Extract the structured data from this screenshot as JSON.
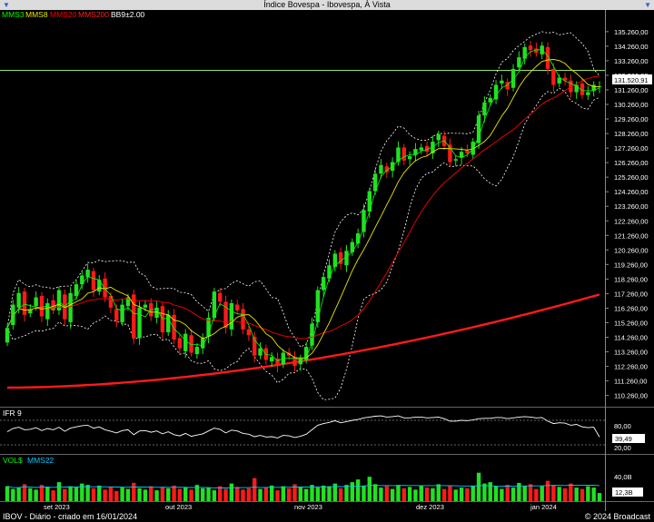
{
  "window": {
    "title": "Índice Bovespa - Ibovespa, À Vista",
    "left_icon": "dropdown-arrow-icon",
    "right_icon": "dropdown-arrow-icon"
  },
  "legend": {
    "mms3": "MMS3",
    "mms8": "MMS8",
    "mms20": "MMS20",
    "mms200": "MMS200",
    "bb": "BB9±2.00",
    "colors": {
      "mms3": "#00ff00",
      "mms8": "#e8e800",
      "mms20": "#ff0000",
      "mms200": "#ff2020",
      "bb": "#ffffff"
    }
  },
  "price_panel": {
    "last_label": "131.520,91",
    "ticks": [
      "135.260,00",
      "134.260,00",
      "133.260,00",
      "132.260,00",
      "131.260,00",
      "130.260,00",
      "129.260,00",
      "128.260,00",
      "127.260,00",
      "126.260,00",
      "125.260,00",
      "124.260,00",
      "123.260,00",
      "122.260,00",
      "121.260,00",
      "120.260,00",
      "119.260,00",
      "118.260,00",
      "117.260,00",
      "116.260,00",
      "115.260,00",
      "114.260,00",
      "113.260,00",
      "112.260,00",
      "111.260,00",
      "110.260,00"
    ]
  },
  "ifr_panel": {
    "label": "IFR 9",
    "ticks": [
      "80,00",
      "20,00"
    ],
    "last_label": "39,49"
  },
  "vol_panel": {
    "label": "VOL$",
    "ma_label": "MMS22",
    "ticks": [
      "40,0B"
    ],
    "last_label": "12,3B"
  },
  "x_axis": {
    "labels": [
      "set 2023",
      "out 2023",
      "nov 2023",
      "dez 2023",
      "jan 2024"
    ]
  },
  "footer": {
    "left": "IBOV - Diário - criado em 16/01/2024",
    "right": "© 2024 Broadcast"
  },
  "chart_data": {
    "type": "candlestick",
    "panels": [
      "price",
      "ifr",
      "volume"
    ],
    "y_range": [
      109800,
      136000
    ],
    "ifr_range": [
      0,
      100
    ],
    "vol_range_billions": [
      0,
      55
    ],
    "horizontal_line": 132600,
    "closes": [
      114900,
      116500,
      117300,
      115800,
      116200,
      117000,
      115700,
      116600,
      116100,
      117500,
      115500,
      117300,
      117900,
      118500,
      118900,
      117500,
      118200,
      117000,
      116300,
      115400,
      116500,
      117000,
      114200,
      116300,
      116500,
      115700,
      116300,
      114600,
      115800,
      114100,
      113500,
      114500,
      113200,
      113600,
      114200,
      115600,
      117400,
      116700,
      114900,
      116600,
      116100,
      114800,
      114400,
      113000,
      113500,
      112700,
      112900,
      112300,
      113200,
      113000,
      112300,
      112800,
      113600,
      115200,
      117500,
      118400,
      119200,
      120000,
      119300,
      120200,
      120800,
      121400,
      123000,
      124300,
      125500,
      126100,
      125600,
      126300,
      127300,
      126400,
      126700,
      127200,
      127300,
      127000,
      127700,
      128200,
      127400,
      126300,
      126500,
      127000,
      126900,
      127700,
      129500,
      130400,
      130700,
      131600,
      131900,
      131300,
      132700,
      133500,
      134200,
      134000,
      133800,
      134300,
      132700,
      131600,
      132100,
      131900,
      131100,
      131600,
      130900,
      131100,
      131600,
      131520
    ],
    "opens": [
      113900,
      115100,
      116300,
      117400,
      115900,
      116400,
      117100,
      115500,
      116800,
      116100,
      117200,
      115300,
      117100,
      117900,
      118400,
      118800,
      117400,
      118300,
      117100,
      116200,
      115300,
      116400,
      117200,
      114200,
      116300,
      116600,
      115600,
      116400,
      114600,
      115800,
      114200,
      113300,
      114400,
      113100,
      113500,
      114300,
      115600,
      117300,
      116700,
      114800,
      116500,
      116200,
      114800,
      114300,
      113000,
      113500,
      112600,
      112800,
      112400,
      113200,
      112900,
      112400,
      112700,
      113700,
      115300,
      117500,
      118300,
      119100,
      120100,
      119200,
      120100,
      120700,
      121500,
      122900,
      124300,
      125500,
      126000,
      125700,
      126300,
      127300,
      126500,
      126800,
      127100,
      127400,
      126900,
      127800,
      128100,
      127500,
      126400,
      126600,
      127100,
      126800,
      127600,
      129500,
      130400,
      130600,
      131700,
      131800,
      131400,
      132800,
      133400,
      134300,
      134100,
      133700,
      134200,
      132700,
      131700,
      132100,
      131900,
      131100,
      131700,
      130900,
      131200,
      131500
    ],
    "mms200_range": [
      110800,
      117200
    ],
    "ifr_values": [
      52,
      60,
      63,
      57,
      58,
      62,
      55,
      60,
      57,
      63,
      53,
      61,
      64,
      67,
      68,
      61,
      64,
      57,
      53,
      49,
      55,
      57,
      45,
      54,
      55,
      51,
      54,
      47,
      52,
      45,
      42,
      48,
      41,
      44,
      47,
      54,
      61,
      58,
      49,
      56,
      54,
      48,
      46,
      40,
      43,
      39,
      40,
      37,
      43,
      42,
      38,
      41,
      46,
      57,
      68,
      72,
      75,
      79,
      74,
      77,
      80,
      82,
      86,
      88,
      90,
      91,
      88,
      89,
      91,
      86,
      86,
      88,
      88,
      86,
      87,
      88,
      84,
      78,
      78,
      80,
      79,
      81,
      84,
      85,
      85,
      87,
      87,
      84,
      86,
      88,
      89,
      88,
      86,
      87,
      78,
      72,
      74,
      73,
      68,
      70,
      64,
      62,
      63,
      39
    ],
    "vol_billions": [
      22,
      18,
      20,
      25,
      19,
      17,
      24,
      21,
      16,
      28,
      18,
      22,
      20,
      26,
      24,
      19,
      23,
      17,
      21,
      15,
      20,
      18,
      27,
      19,
      17,
      22,
      16,
      20,
      19,
      23,
      18,
      21,
      17,
      24,
      19,
      20,
      16,
      22,
      18,
      26,
      21,
      17,
      19,
      34,
      18,
      20,
      23,
      16,
      22,
      19,
      25,
      21,
      18,
      24,
      20,
      23,
      22,
      26,
      19,
      24,
      28,
      32,
      23,
      36,
      25,
      20,
      22,
      18,
      24,
      19,
      21,
      17,
      23,
      20,
      19,
      25,
      18,
      22,
      17,
      20,
      19,
      23,
      42,
      26,
      28,
      22,
      18,
      24,
      20,
      27,
      22,
      25,
      18,
      22,
      30,
      24,
      21,
      19,
      26,
      20,
      18,
      22,
      20,
      12
    ]
  }
}
